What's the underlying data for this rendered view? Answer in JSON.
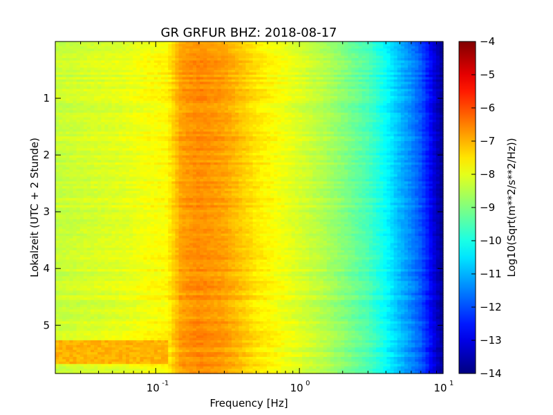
{
  "chart_data": {
    "type": "heatmap",
    "title": "GR GRFUR BHZ: 2018-08-17",
    "xlabel": "Frequency [Hz]",
    "ylabel": "Lokalzeit (UTC + 2 Stunde)",
    "x_scale": "log",
    "xlim": [
      0.02,
      10
    ],
    "ylim": [
      5.85,
      0
    ],
    "x_ticks": [
      {
        "value": 0.1,
        "label": "10",
        "exp": "-1"
      },
      {
        "value": 1,
        "label": "10",
        "exp": "0"
      },
      {
        "value": 10,
        "label": "10",
        "exp": "1"
      }
    ],
    "y_ticks": [
      {
        "value": 1,
        "label": "1"
      },
      {
        "value": 2,
        "label": "2"
      },
      {
        "value": 3,
        "label": "3"
      },
      {
        "value": 4,
        "label": "4"
      },
      {
        "value": 5,
        "label": "5"
      }
    ],
    "colorbar": {
      "label": "Log10(Sqrt(m**2/s**2/Hz))",
      "range": [
        -14,
        -4
      ],
      "colormap": "jet",
      "ticks": [
        {
          "value": -4,
          "label": "−4"
        },
        {
          "value": -5,
          "label": "−5"
        },
        {
          "value": -6,
          "label": "−6"
        },
        {
          "value": -7,
          "label": "−7"
        },
        {
          "value": -8,
          "label": "−8"
        },
        {
          "value": -9,
          "label": "−9"
        },
        {
          "value": -10,
          "label": "−10"
        },
        {
          "value": -11,
          "label": "−11"
        },
        {
          "value": -12,
          "label": "−12"
        },
        {
          "value": -13,
          "label": "−13"
        },
        {
          "value": -14,
          "label": "−14"
        }
      ]
    },
    "spectrum_profile": {
      "frequency_hz": [
        0.02,
        0.04,
        0.06,
        0.09,
        0.12,
        0.15,
        0.2,
        0.3,
        0.5,
        0.7,
        1.0,
        1.5,
        2.0,
        3.0,
        4.0,
        5.0,
        6.0,
        7.0,
        8.0,
        9.0,
        10.0
      ],
      "log10_amplitude": [
        -8.3,
        -8.1,
        -8.0,
        -7.8,
        -7.7,
        -6.8,
        -6.6,
        -6.8,
        -7.5,
        -7.8,
        -8.1,
        -8.5,
        -8.9,
        -9.5,
        -10.2,
        -10.9,
        -11.4,
        -11.9,
        -12.6,
        -13.3,
        -13.8
      ]
    },
    "quiet_band": {
      "time_start": 5.25,
      "time_end": 5.7,
      "freq_max": 0.12,
      "log10_amplitude": -7.0
    }
  }
}
